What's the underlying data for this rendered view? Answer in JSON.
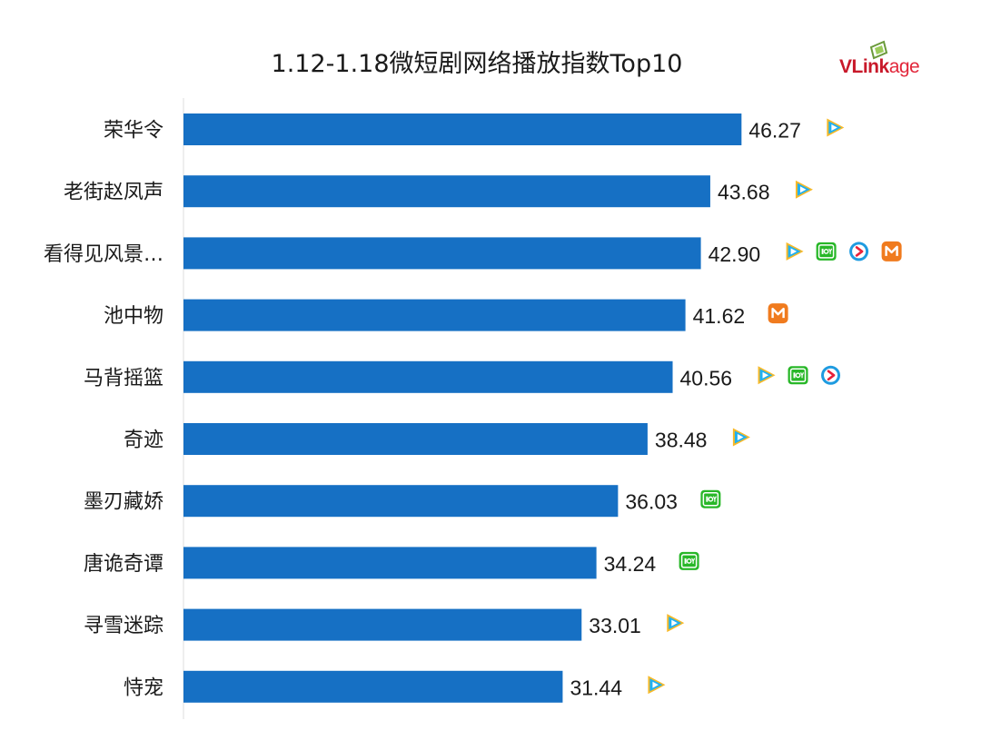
{
  "title": "1.12-1.18微短剧网络播放指数Top10",
  "logo": {
    "text_a": "VLink",
    "text_b": "age",
    "icon": "vlinkage-logo-icon"
  },
  "colors": {
    "bar": "#1670c4",
    "tencent": "#20b0f0",
    "iqiyi": "#28b728",
    "youku": "#1e9be0",
    "mango": "#f07b1e"
  },
  "chart_data": {
    "type": "bar",
    "orientation": "horizontal",
    "title": "1.12-1.18微短剧网络播放指数Top10",
    "categories": [
      "荣华令",
      "老街赵凤声",
      "看得见风景…",
      "池中物",
      "马背摇篮",
      "奇迹",
      "墨刃藏娇",
      "唐诡奇谭",
      "寻雪迷踪",
      "恃宠"
    ],
    "values": [
      46.27,
      43.68,
      42.9,
      41.62,
      40.56,
      38.48,
      36.03,
      34.24,
      33.01,
      31.44
    ],
    "value_labels": [
      "46.27",
      "43.68",
      "42.90",
      "41.62",
      "40.56",
      "38.48",
      "36.03",
      "34.24",
      "33.01",
      "31.44"
    ],
    "platform_icons": [
      [
        "tencent-video-icon"
      ],
      [
        "tencent-video-icon"
      ],
      [
        "tencent-video-icon",
        "iqiyi-icon",
        "youku-icon",
        "mango-tv-icon"
      ],
      [
        "mango-tv-icon"
      ],
      [
        "tencent-video-icon",
        "iqiyi-icon",
        "youku-icon"
      ],
      [
        "tencent-video-icon"
      ],
      [
        "iqiyi-icon"
      ],
      [
        "iqiyi-icon"
      ],
      [
        "tencent-video-icon"
      ],
      [
        "tencent-video-icon"
      ]
    ],
    "xlim": [
      0,
      50
    ],
    "grid": false,
    "legend": "none"
  }
}
